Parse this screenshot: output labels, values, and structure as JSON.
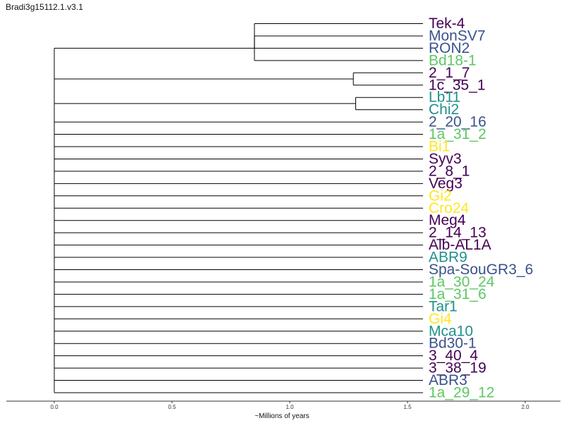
{
  "title": "Bradi3g15112.1.v3.1",
  "axis": {
    "label": "~Millions of years",
    "ticks": [
      "0.0",
      "0.5",
      "1.0",
      "1.5",
      "2.0"
    ],
    "tick_values": [
      0,
      0.5,
      1.0,
      1.5,
      2.0
    ],
    "range": [
      -0.2,
      2.15
    ]
  },
  "colors": {
    "purple": "#440154",
    "blue": "#3b528b",
    "teal": "#21908c",
    "green": "#5dc863",
    "yellow": "#fde725",
    "line": "#000000"
  },
  "leaves": [
    {
      "name": "Tek-4",
      "color": "purple"
    },
    {
      "name": "MonSV7",
      "color": "blue"
    },
    {
      "name": "RON2",
      "color": "blue"
    },
    {
      "name": "Bd18-1",
      "color": "green"
    },
    {
      "name": "2_1_7",
      "color": "purple"
    },
    {
      "name": "1c_35_1",
      "color": "purple"
    },
    {
      "name": "Lb11",
      "color": "teal"
    },
    {
      "name": "Chi2",
      "color": "teal"
    },
    {
      "name": "2_20_16",
      "color": "blue"
    },
    {
      "name": "1a_31_2",
      "color": "green"
    },
    {
      "name": "Bi1",
      "color": "yellow"
    },
    {
      "name": "Syv3",
      "color": "purple"
    },
    {
      "name": "2_8_1",
      "color": "purple"
    },
    {
      "name": "Veg3",
      "color": "purple"
    },
    {
      "name": "Gi2",
      "color": "yellow"
    },
    {
      "name": "Cro24",
      "color": "yellow"
    },
    {
      "name": "Meg4",
      "color": "purple"
    },
    {
      "name": "2_14_13",
      "color": "purple"
    },
    {
      "name": "Alb-AL1A",
      "color": "purple"
    },
    {
      "name": "ABR9",
      "color": "teal"
    },
    {
      "name": "Spa-SouGR3_6",
      "color": "blue"
    },
    {
      "name": "1a_30_24",
      "color": "green"
    },
    {
      "name": "1a_31_6",
      "color": "green"
    },
    {
      "name": "Tar1",
      "color": "teal"
    },
    {
      "name": "Gi4",
      "color": "yellow"
    },
    {
      "name": "Mca10",
      "color": "teal"
    },
    {
      "name": "Bd30-1",
      "color": "blue"
    },
    {
      "name": "3_40_4",
      "color": "purple"
    },
    {
      "name": "3_38_19",
      "color": "purple"
    },
    {
      "name": "ABR3",
      "color": "blue"
    },
    {
      "name": "1a_29_12",
      "color": "green"
    }
  ],
  "tree": {
    "height": 0,
    "children": [
      {
        "height": 0.85,
        "children": [
          {
            "height": 0.85,
            "children": [
              {
                "leaf": 0
              },
              {
                "leaf": 1
              },
              {
                "leaf": 2
              }
            ]
          },
          {
            "leaf": 3
          }
        ]
      },
      {
        "height": 1.27,
        "children": [
          {
            "leaf": 4
          },
          {
            "leaf": 5
          }
        ]
      },
      {
        "height": 1.28,
        "children": [
          {
            "leaf": 6
          },
          {
            "leaf": 7
          }
        ]
      },
      {
        "leaf": 8
      },
      {
        "leaf": 9
      },
      {
        "leaf": 10
      },
      {
        "leaf": 11
      },
      {
        "leaf": 12
      },
      {
        "leaf": 13
      },
      {
        "leaf": 14
      },
      {
        "leaf": 15
      },
      {
        "leaf": 16
      },
      {
        "leaf": 17
      },
      {
        "leaf": 18
      },
      {
        "leaf": 19
      },
      {
        "leaf": 20
      },
      {
        "leaf": 21
      },
      {
        "leaf": 22
      },
      {
        "leaf": 23
      },
      {
        "leaf": 24
      },
      {
        "leaf": 25
      },
      {
        "leaf": 26
      },
      {
        "leaf": 27
      },
      {
        "leaf": 28
      },
      {
        "leaf": 29
      },
      {
        "leaf": 30
      }
    ]
  }
}
